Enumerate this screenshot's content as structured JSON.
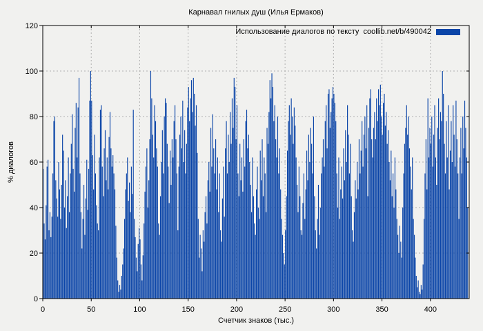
{
  "chart_data": {
    "type": "bar",
    "title": "Карнавал гнилых душ (Илья Ермаков)",
    "legend_label": "Использование диалогов по тексту  coollib.net/b/490042",
    "xlabel": "Счетчик знаков (тыс.)",
    "ylabel": "% диалогов",
    "xlim": [
      0,
      440
    ],
    "ylim": [
      0,
      120
    ],
    "xticks": [
      0,
      50,
      100,
      150,
      200,
      250,
      300,
      350,
      400
    ],
    "yticks": [
      0,
      20,
      40,
      60,
      80,
      100,
      120
    ],
    "grid": true,
    "legend_position": "top-right-inside",
    "bar_color": "#0b45a8",
    "grid_color": "#b0b0b0",
    "axis_color": "#000000",
    "background_color": "#f1f1ef",
    "x_start": 0,
    "x_step": 1,
    "values": [
      57,
      33,
      26,
      41,
      58,
      61,
      30,
      38,
      27,
      36,
      55,
      78,
      80,
      52,
      44,
      36,
      60,
      48,
      35,
      50,
      72,
      65,
      40,
      52,
      31,
      45,
      62,
      38,
      55,
      68,
      81,
      57,
      47,
      75,
      86,
      62,
      84,
      97,
      55,
      38,
      22,
      35,
      50,
      28,
      44,
      61,
      39,
      57,
      87,
      100,
      87,
      63,
      48,
      72,
      55,
      41,
      33,
      30,
      62,
      83,
      85,
      58,
      45,
      66,
      74,
      52,
      62,
      48,
      71,
      82,
      66,
      58,
      63,
      55,
      48,
      32,
      18,
      8,
      3,
      6,
      4,
      10,
      15,
      22,
      35,
      48,
      55,
      62,
      43,
      51,
      38,
      58,
      46,
      83,
      35,
      27,
      18,
      12,
      24,
      31,
      26,
      15,
      8,
      19,
      33,
      47,
      58,
      66,
      40,
      52,
      70,
      100,
      88,
      72,
      62,
      85,
      78,
      66,
      58,
      33,
      28,
      45,
      60,
      74,
      55,
      80,
      88,
      86,
      68,
      58,
      42,
      65,
      50,
      70,
      62,
      78,
      85,
      70,
      55,
      30,
      58,
      72,
      80,
      66,
      87,
      60,
      74,
      55,
      68,
      84,
      93,
      78,
      88,
      96,
      82,
      97,
      90,
      76,
      85,
      64,
      35,
      18,
      28,
      22,
      12,
      30,
      25,
      38,
      45,
      33,
      52,
      60,
      47,
      75,
      58,
      81,
      66,
      55,
      70,
      48,
      62,
      38,
      55,
      30,
      25,
      44,
      58,
      36,
      66,
      78,
      55,
      72,
      60,
      82,
      68,
      88,
      75,
      97,
      93,
      70,
      85,
      55,
      45,
      68,
      52,
      62,
      47,
      70,
      58,
      78,
      83,
      66,
      72,
      60,
      50,
      38,
      62,
      45,
      33,
      28,
      48,
      58,
      40,
      35,
      65,
      52,
      70,
      45,
      62,
      55,
      38,
      75,
      68,
      82,
      96,
      88,
      99,
      93,
      78,
      85,
      70,
      62,
      80,
      55,
      66,
      48,
      35,
      28,
      20,
      15,
      30,
      45,
      65,
      78,
      85,
      72,
      88,
      80,
      68,
      84,
      76,
      62,
      50,
      38,
      58,
      45,
      30,
      28,
      42,
      55,
      35,
      48,
      65,
      52,
      72,
      60,
      75,
      68,
      55,
      80,
      45,
      30,
      22,
      35,
      50,
      28,
      40,
      55,
      62,
      70,
      58,
      78,
      85,
      66,
      90,
      92,
      75,
      82,
      88,
      93,
      90,
      86,
      78,
      55,
      40,
      62,
      35,
      48,
      58,
      44,
      66,
      52,
      74,
      60,
      85,
      72,
      55,
      68,
      45,
      30,
      25,
      38,
      52,
      44,
      60,
      48,
      70,
      55,
      65,
      78,
      58,
      72,
      80,
      66,
      85,
      45,
      75,
      88,
      92,
      70,
      62,
      75,
      82,
      70,
      88,
      78,
      92,
      85,
      94,
      80,
      72,
      86,
      90,
      76,
      82,
      68,
      74,
      60,
      52,
      65,
      45,
      55,
      40,
      62,
      48,
      35,
      28,
      20,
      32,
      25,
      18,
      40,
      55,
      68,
      75,
      85,
      72,
      80,
      66,
      58,
      48,
      62,
      35,
      28,
      18,
      10,
      5,
      8,
      3,
      2,
      6,
      4,
      15,
      35,
      55,
      70,
      48,
      88,
      62,
      75,
      68,
      80,
      58,
      72,
      85,
      62,
      50,
      75,
      88,
      70,
      82,
      78,
      100,
      90,
      68,
      55,
      78,
      62,
      85,
      48,
      65,
      78,
      60,
      85,
      72,
      58,
      87,
      70,
      55,
      35,
      62,
      75,
      55,
      80,
      66,
      87,
      75,
      62,
      40
    ]
  }
}
